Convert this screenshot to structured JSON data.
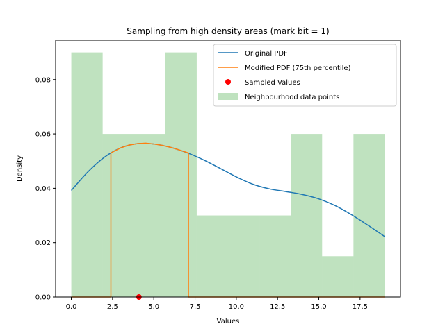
{
  "chart_data": {
    "type": "bar",
    "title": "Sampling from high density areas (mark bit = 1)",
    "xlabel": "Values",
    "ylabel": "Density",
    "xlim": [
      -0.95,
      19.95
    ],
    "ylim": [
      0,
      0.0945
    ],
    "xticks": [
      0.0,
      2.5,
      5.0,
      7.5,
      10.0,
      12.5,
      15.0,
      17.5
    ],
    "xtick_labels": [
      "0.0",
      "2.5",
      "5.0",
      "7.5",
      "10.0",
      "12.5",
      "15.0",
      "17.5"
    ],
    "yticks": [
      0.0,
      0.02,
      0.04,
      0.06,
      0.08
    ],
    "ytick_labels": [
      "0.00",
      "0.02",
      "0.04",
      "0.06",
      "0.08"
    ],
    "grid": false,
    "legend_position": "top-right",
    "histogram": {
      "name": "Neighbourhood data points",
      "color": "#2ca02c",
      "alpha": 0.3,
      "bin_edges": [
        0.0,
        1.9,
        3.8,
        5.7,
        7.6,
        9.5,
        11.4,
        13.3,
        15.2,
        17.1,
        19.0
      ],
      "densities": [
        0.09,
        0.06,
        0.06,
        0.09,
        0.03,
        0.03,
        0.03,
        0.06,
        0.015,
        0.06
      ]
    },
    "series": [
      {
        "name": "Original PDF",
        "color": "#1f77b4",
        "x": [
          0.0,
          1.0,
          2.0,
          3.0,
          4.0,
          5.0,
          6.0,
          7.0,
          8.0,
          9.0,
          10.0,
          11.0,
          12.0,
          13.0,
          14.0,
          15.0,
          16.0,
          17.0,
          18.0,
          19.0
        ],
        "y": [
          0.0392,
          0.046,
          0.0514,
          0.0549,
          0.0564,
          0.0563,
          0.0551,
          0.0531,
          0.0505,
          0.0474,
          0.0442,
          0.0415,
          0.0398,
          0.0388,
          0.0377,
          0.0361,
          0.0336,
          0.0302,
          0.0263,
          0.0222
        ]
      },
      {
        "name": "Modified PDF (75th percentile)",
        "color": "#ff7f0e",
        "x": [
          0.0,
          2.4,
          2.4,
          3.0,
          3.5,
          4.0,
          4.5,
          5.0,
          5.5,
          6.0,
          6.5,
          7.1,
          7.1,
          19.0
        ],
        "y": [
          0.0,
          0.0,
          0.053,
          0.0549,
          0.0559,
          0.0564,
          0.0566,
          0.0563,
          0.0558,
          0.0551,
          0.0542,
          0.053,
          0.0,
          0.0
        ]
      }
    ],
    "scatter": {
      "name": "Sampled Values",
      "color": "#ff0000",
      "points": [
        [
          4.1,
          0.0
        ]
      ]
    },
    "legend": [
      {
        "label": "Original PDF",
        "kind": "line",
        "color": "#1f77b4"
      },
      {
        "label": "Modified PDF (75th percentile)",
        "kind": "line",
        "color": "#ff7f0e"
      },
      {
        "label": "Sampled Values",
        "kind": "dot",
        "color": "#ff0000"
      },
      {
        "label": "Neighbourhood data points",
        "kind": "patch",
        "color": "#2ca02c"
      }
    ]
  }
}
